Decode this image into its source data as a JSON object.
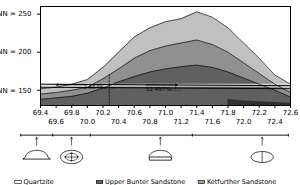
{
  "chart_data": {
    "type": "area",
    "x": [
      69.4,
      69.5,
      69.6,
      69.8,
      70.0,
      70.2,
      70.4,
      70.6,
      70.8,
      71.0,
      71.2,
      71.4,
      71.6,
      71.8,
      72.0,
      72.2,
      72.4,
      72.6
    ],
    "series": [
      {
        "name": "Quartzite",
        "color": "#c0c0c0",
        "values": [
          152,
          153,
          154,
          158,
          164,
          180,
          200,
          220,
          232,
          240,
          244,
          253,
          246,
          232,
          212,
          192,
          170,
          158
        ]
      },
      {
        "name": "Upper Bunter Sandstone",
        "color": "#909090",
        "values": [
          145,
          146,
          147,
          150,
          154,
          165,
          178,
          192,
          202,
          208,
          212,
          216,
          210,
          200,
          186,
          172,
          158,
          147
        ]
      },
      {
        "name": "Ketfurther Sandstone",
        "color": "#606060",
        "values": [
          138,
          139,
          140,
          142,
          146,
          153,
          161,
          168,
          174,
          178,
          181,
          183,
          180,
          174,
          166,
          158,
          150,
          141
        ]
      }
    ],
    "legend_colors": [
      "#ffffff",
      "#606060",
      "#a0a0a0"
    ],
    "baseline": 130,
    "xlim": [
      69.4,
      72.6
    ],
    "ylim": [
      130,
      260
    ],
    "xticks": [
      69.4,
      69.8,
      70.2,
      70.6,
      {
        "value": 71.0,
        "label": "71.0"
      },
      71.4,
      71.8,
      72.2,
      72.6
    ],
    "x2ticks": [
      69.6,
      {
        "value": 70.0,
        "label": "70.0"
      },
      70.4,
      70.8,
      71.2,
      71.6,
      {
        "value": 72.0,
        "label": "72.0"
      },
      72.4
    ],
    "yticks": [
      {
        "value": 150,
        "label": "NN = 150"
      },
      {
        "value": 200,
        "label": "NN = 200"
      },
      {
        "value": 250,
        "label": "NN = 250"
      }
    ],
    "dark_area": {
      "x": [
        71.8,
        72.0,
        72.2,
        72.4,
        72.6
      ],
      "y": [
        138,
        136,
        135,
        134,
        133
      ],
      "color": "#303030"
    },
    "tunnel_strip": {
      "x": [
        69.4,
        72.6
      ],
      "y1": 154,
      "y2": 158,
      "color": "#e0e0e0"
    },
    "tunnel_lines": [
      {
        "x": [
          69.4,
          72.6
        ],
        "y": [
          158,
          156
        ]
      },
      {
        "x": [
          69.4,
          72.6
        ],
        "y": [
          154,
          152
        ]
      }
    ],
    "vline": {
      "x": 70.28,
      "y": [
        130,
        170
      ]
    },
    "arrows": [
      {
        "x1": 69.95,
        "x2": 69.6,
        "y": 157.2
      },
      {
        "x1": 70.75,
        "x2": 71.15,
        "y": 157.0
      }
    ],
    "annotations": [
      {
        "text": "2.654‰ /...",
        "x": 69.95,
        "y": 156.5
      },
      {
        "text": "12.497‰ /...",
        "x": 70.75,
        "y": 154.5
      }
    ]
  }
}
